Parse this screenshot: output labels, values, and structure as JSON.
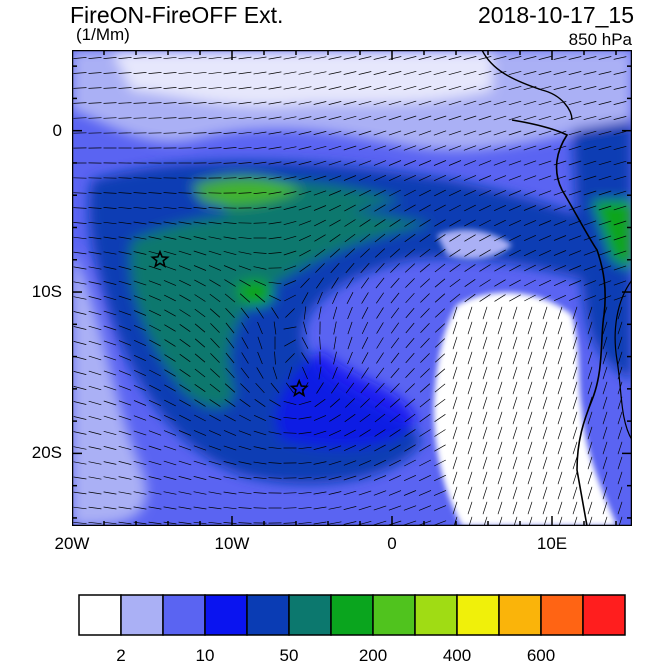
{
  "header": {
    "title": "FireON-FireOFF Ext.",
    "units": "(1/Mm)",
    "date": "2018-10-17_15",
    "level": "850 hPa"
  },
  "map": {
    "lon_range": [
      -20,
      15
    ],
    "lat_range": [
      -24.5,
      5
    ],
    "y_ticks": [
      {
        "label": "0",
        "lat": 0
      },
      {
        "label": "10S",
        "lat": -10
      },
      {
        "label": "20S",
        "lat": -20
      }
    ],
    "x_ticks": [
      {
        "label": "20W",
        "lon": -20
      },
      {
        "label": "10W",
        "lon": -10
      },
      {
        "label": "0",
        "lon": 0
      },
      {
        "label": "10E",
        "lon": 10
      }
    ],
    "markers": [
      {
        "name": "star-marker",
        "lon": -14.5,
        "lat": -8.0
      },
      {
        "name": "star-marker",
        "lon": -5.8,
        "lat": -16.0
      }
    ]
  },
  "colorbar": {
    "colors": [
      "#ffffff",
      "#aab0f5",
      "#5a64f2",
      "#0a14f0",
      "#0a3cb4",
      "#0c786e",
      "#0aa51e",
      "#50c31e",
      "#a0dc14",
      "#f0f00a",
      "#fab40a",
      "#ff6414",
      "#ff1e1e"
    ],
    "labels": [
      "2",
      "10",
      "50",
      "200",
      "400",
      "600"
    ]
  }
}
